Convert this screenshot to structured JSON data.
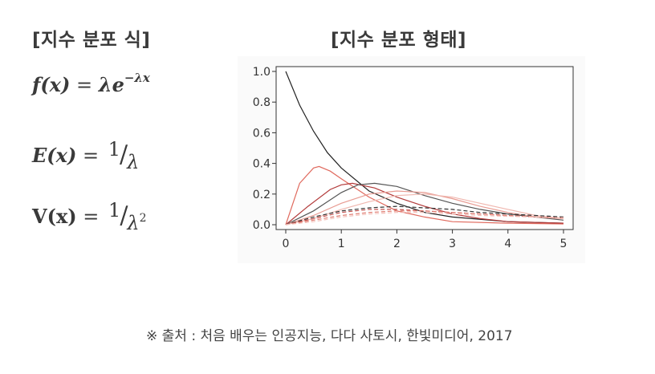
{
  "headings": {
    "left": "[지수 분포 식]",
    "right": "[지수 분포 형태]"
  },
  "formulas": {
    "pdf": {
      "lhs": "f",
      "arg": "(x)",
      "eq": " = ",
      "lam": "λe",
      "exp": "−λx"
    },
    "expectation": {
      "lhs": "E",
      "arg": "(x)",
      "eq": " = ",
      "num": "1",
      "den": "λ"
    },
    "variance": {
      "lhs": "V",
      "arg": "(x)",
      "eq": " = ",
      "num": "1",
      "den": "λ",
      "den_power": "2"
    }
  },
  "chart_data": {
    "type": "line",
    "title": "",
    "xlabel": "",
    "ylabel": "",
    "xlim": [
      0,
      5
    ],
    "ylim": [
      0,
      1.0
    ],
    "x_ticks": [
      "0",
      "1",
      "2",
      "3",
      "4",
      "5"
    ],
    "y_ticks": [
      "0.0",
      "0.2",
      "0.4",
      "0.6",
      "0.8",
      "1.0"
    ],
    "grid": false,
    "series": [
      {
        "color": "#222222",
        "dash": "solid",
        "x": [
          0,
          0.25,
          0.5,
          0.75,
          1.0,
          1.5,
          2.0,
          2.5,
          3.0,
          4.0,
          5.0
        ],
        "y": [
          1.0,
          0.78,
          0.61,
          0.47,
          0.37,
          0.22,
          0.14,
          0.08,
          0.05,
          0.02,
          0.01
        ]
      },
      {
        "color": "#e06a5e",
        "dash": "solid",
        "x": [
          0,
          0.25,
          0.5,
          0.6,
          0.8,
          1.0,
          1.5,
          2.0,
          2.5,
          3.0,
          4.0,
          5.0
        ],
        "y": [
          0.0,
          0.27,
          0.37,
          0.38,
          0.35,
          0.3,
          0.18,
          0.09,
          0.05,
          0.02,
          0.01,
          0.005
        ]
      },
      {
        "color": "#b23a3a",
        "dash": "solid",
        "x": [
          0,
          0.4,
          0.8,
          1.0,
          1.2,
          1.6,
          2.0,
          2.5,
          3.0,
          3.5,
          4.0,
          5.0
        ],
        "y": [
          0.0,
          0.12,
          0.23,
          0.26,
          0.27,
          0.24,
          0.18,
          0.12,
          0.07,
          0.04,
          0.02,
          0.01
        ]
      },
      {
        "color": "#555555",
        "dash": "solid",
        "x": [
          0,
          0.5,
          1.0,
          1.3,
          1.6,
          2.0,
          2.5,
          3.0,
          3.5,
          4.0,
          5.0
        ],
        "y": [
          0.0,
          0.09,
          0.21,
          0.26,
          0.27,
          0.25,
          0.19,
          0.14,
          0.1,
          0.07,
          0.03
        ]
      },
      {
        "color": "#e89b92",
        "dash": "solid",
        "x": [
          0,
          0.5,
          1.0,
          1.5,
          2.0,
          2.5,
          3.0,
          3.5,
          4.0,
          4.5,
          5.0
        ],
        "y": [
          0.0,
          0.06,
          0.14,
          0.2,
          0.22,
          0.21,
          0.17,
          0.12,
          0.08,
          0.05,
          0.04
        ]
      },
      {
        "color": "#f0b8b0",
        "dash": "solid",
        "x": [
          0,
          0.5,
          1.0,
          1.5,
          2.0,
          2.5,
          3.0,
          3.5,
          4.0,
          4.5,
          5.0
        ],
        "y": [
          0.0,
          0.04,
          0.1,
          0.15,
          0.19,
          0.2,
          0.18,
          0.14,
          0.1,
          0.06,
          0.04
        ]
      },
      {
        "color": "#333333",
        "dash": "dashed",
        "x": [
          0,
          0.5,
          1.0,
          1.5,
          2.0,
          2.5,
          3.0,
          3.5,
          4.0,
          4.5,
          5.0
        ],
        "y": [
          0.0,
          0.05,
          0.09,
          0.11,
          0.12,
          0.11,
          0.1,
          0.08,
          0.07,
          0.06,
          0.05
        ]
      },
      {
        "color": "#c0504d",
        "dash": "dashed",
        "x": [
          0,
          0.5,
          1.0,
          1.5,
          2.0,
          2.5,
          3.0,
          3.5,
          4.0,
          4.5,
          5.0
        ],
        "y": [
          0.0,
          0.04,
          0.08,
          0.1,
          0.1,
          0.09,
          0.08,
          0.07,
          0.06,
          0.05,
          0.045
        ]
      },
      {
        "color": "#e07b70",
        "dash": "dashed",
        "x": [
          0,
          0.5,
          1.0,
          1.5,
          2.0,
          2.5,
          3.0,
          3.5,
          4.0,
          4.5,
          5.0
        ],
        "y": [
          0.0,
          0.03,
          0.06,
          0.08,
          0.09,
          0.09,
          0.08,
          0.07,
          0.06,
          0.05,
          0.045
        ]
      },
      {
        "color": "#f3c1ba",
        "dash": "dashed",
        "x": [
          0,
          0.5,
          1.0,
          1.5,
          2.0,
          2.5,
          3.0,
          3.5,
          4.0,
          4.5,
          5.0
        ],
        "y": [
          0.0,
          0.02,
          0.05,
          0.07,
          0.08,
          0.08,
          0.07,
          0.06,
          0.055,
          0.05,
          0.045
        ]
      }
    ]
  },
  "source": "※ 출처 : 처음 배우는 인공지능, 다다 사토시, 한빛미디어, 2017"
}
